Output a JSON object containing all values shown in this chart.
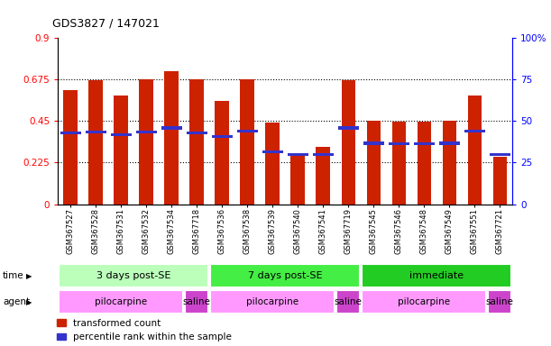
{
  "title": "GDS3827 / 147021",
  "samples": [
    "GSM367527",
    "GSM367528",
    "GSM367531",
    "GSM367532",
    "GSM367534",
    "GSM367718",
    "GSM367536",
    "GSM367538",
    "GSM367539",
    "GSM367540",
    "GSM367541",
    "GSM367719",
    "GSM367545",
    "GSM367546",
    "GSM367548",
    "GSM367549",
    "GSM367551",
    "GSM367721"
  ],
  "red_values": [
    0.62,
    0.672,
    0.59,
    0.675,
    0.72,
    0.675,
    0.56,
    0.675,
    0.44,
    0.27,
    0.308,
    0.672,
    0.45,
    0.448,
    0.445,
    0.45,
    0.59,
    0.258
  ],
  "blue_values": [
    0.385,
    0.39,
    0.377,
    0.39,
    0.413,
    0.387,
    0.367,
    0.398,
    0.285,
    0.268,
    0.27,
    0.413,
    0.33,
    0.328,
    0.328,
    0.33,
    0.395,
    0.27
  ],
  "ylim_left": [
    0,
    0.9
  ],
  "ylim_right": [
    0,
    100
  ],
  "yticks_left": [
    0,
    0.225,
    0.45,
    0.675,
    0.9
  ],
  "yticks_right": [
    0,
    25,
    50,
    75,
    100
  ],
  "hlines": [
    0.225,
    0.45,
    0.675
  ],
  "bar_color": "#CC2200",
  "blue_color": "#3333CC",
  "bar_width": 0.55,
  "time_groups": [
    {
      "label": "3 days post-SE",
      "start": 0,
      "end": 6,
      "color": "#BBFFBB"
    },
    {
      "label": "7 days post-SE",
      "start": 6,
      "end": 12,
      "color": "#44EE44"
    },
    {
      "label": "immediate",
      "start": 12,
      "end": 18,
      "color": "#22CC22"
    }
  ],
  "agent_groups": [
    {
      "label": "pilocarpine",
      "start": 0,
      "end": 5,
      "color": "#FF99FF"
    },
    {
      "label": "saline",
      "start": 5,
      "end": 6,
      "color": "#CC44CC"
    },
    {
      "label": "pilocarpine",
      "start": 6,
      "end": 11,
      "color": "#FF99FF"
    },
    {
      "label": "saline",
      "start": 11,
      "end": 12,
      "color": "#CC44CC"
    },
    {
      "label": "pilocarpine",
      "start": 12,
      "end": 17,
      "color": "#FF99FF"
    },
    {
      "label": "saline",
      "start": 17,
      "end": 18,
      "color": "#CC44CC"
    }
  ],
  "legend_items": [
    {
      "label": "transformed count",
      "color": "#CC2200"
    },
    {
      "label": "percentile rank within the sample",
      "color": "#3333CC"
    }
  ],
  "bg_color": "#FFFFFF"
}
